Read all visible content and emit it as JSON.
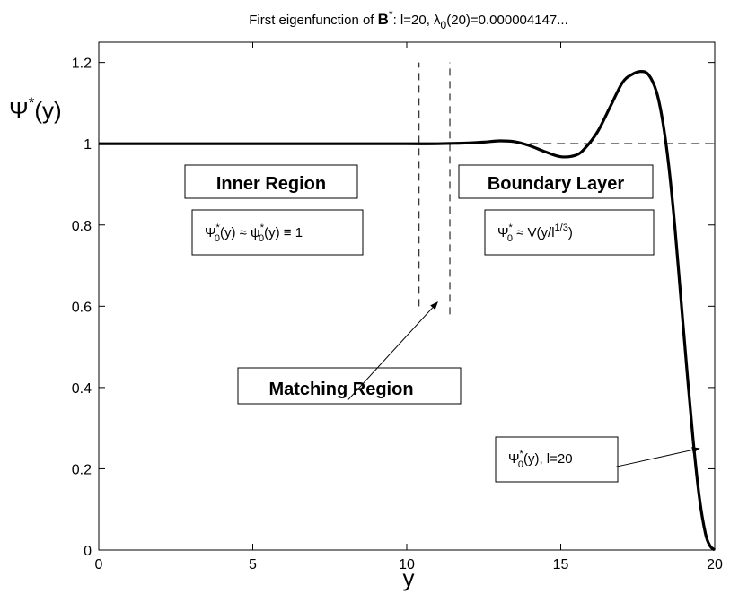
{
  "chart_data": {
    "type": "line",
    "title": {
      "prefix": "First eigenfunction of ",
      "symbol": "B",
      "symbol_sup": "*",
      "mid": ": l=20, λ",
      "lambda_sub": "0",
      "suffix": "(20)=0.000004147..."
    },
    "xlabel": "y",
    "ylabel": {
      "main": "Ψ",
      "sup": "*",
      "tail": "(y)"
    },
    "xlim": [
      0,
      20
    ],
    "ylim": [
      0,
      1.25
    ],
    "xticks": [
      "0",
      "5",
      "10",
      "15",
      "20"
    ],
    "xtick_values": [
      0,
      5,
      10,
      15,
      20
    ],
    "yticks": [
      "0",
      "0.2",
      "0.4",
      "0.6",
      "0.8",
      "1",
      "1.2"
    ],
    "ytick_values": [
      0,
      0.2,
      0.4,
      0.6,
      0.8,
      1.0,
      1.2
    ],
    "grid": false,
    "series": [
      {
        "x": [
          0,
          2,
          4,
          6,
          8,
          10,
          11,
          12,
          12.5,
          13,
          13.5,
          14,
          14.5,
          15,
          15.5,
          15.8,
          16.2,
          16.6,
          17.0,
          17.3,
          17.6,
          17.85,
          18.1,
          18.3,
          18.5,
          18.7,
          18.9,
          19.1,
          19.3,
          19.5,
          19.7,
          19.85,
          20.0
        ],
        "y": [
          1.0,
          1.0,
          1.0,
          1.0,
          1.0,
          1.0,
          1.0,
          1.002,
          1.004,
          1.007,
          1.005,
          0.995,
          0.98,
          0.968,
          0.972,
          0.99,
          1.03,
          1.09,
          1.15,
          1.17,
          1.178,
          1.17,
          1.13,
          1.06,
          0.95,
          0.8,
          0.62,
          0.44,
          0.27,
          0.13,
          0.04,
          0.01,
          0.0
        ],
        "color": "#000000"
      }
    ],
    "reference_line": {
      "y": 1.0,
      "x_from": 14.0,
      "x_to": 20.0,
      "style": "dashed"
    },
    "matching_lines": [
      {
        "x": 10.4,
        "y_from": 0.6,
        "y_to": 1.2
      },
      {
        "x": 11.4,
        "y_from": 0.58,
        "y_to": 1.2
      }
    ],
    "annotations": {
      "inner_region": {
        "label": "Inner Region",
        "formula": {
          "a": "Ψ",
          "a_sup": "*",
          "a_sub": "0",
          "b": "(y) ≈ ψ",
          "b_sup": "*",
          "b_sub": "0",
          "c": "(y) ≡ 1"
        }
      },
      "boundary_layer": {
        "label": "Boundary Layer",
        "formula": {
          "a": "Ψ",
          "a_sup": "*",
          "a_sub": "0",
          "b": " ≈ V(y/l",
          "b_sup": "1/3",
          "c": ")"
        }
      },
      "matching_region": {
        "label": "Matching Region",
        "arrow_from": [
          8.1,
          0.37
        ],
        "arrow_to": [
          11.0,
          0.61
        ]
      },
      "curve_label": {
        "formula": {
          "a": "Ψ",
          "a_sup": "*",
          "a_sub": "0",
          "b": "(y), l=20"
        },
        "arrow_from": [
          16.8,
          0.205
        ],
        "arrow_to": [
          19.5,
          0.25
        ]
      }
    }
  }
}
